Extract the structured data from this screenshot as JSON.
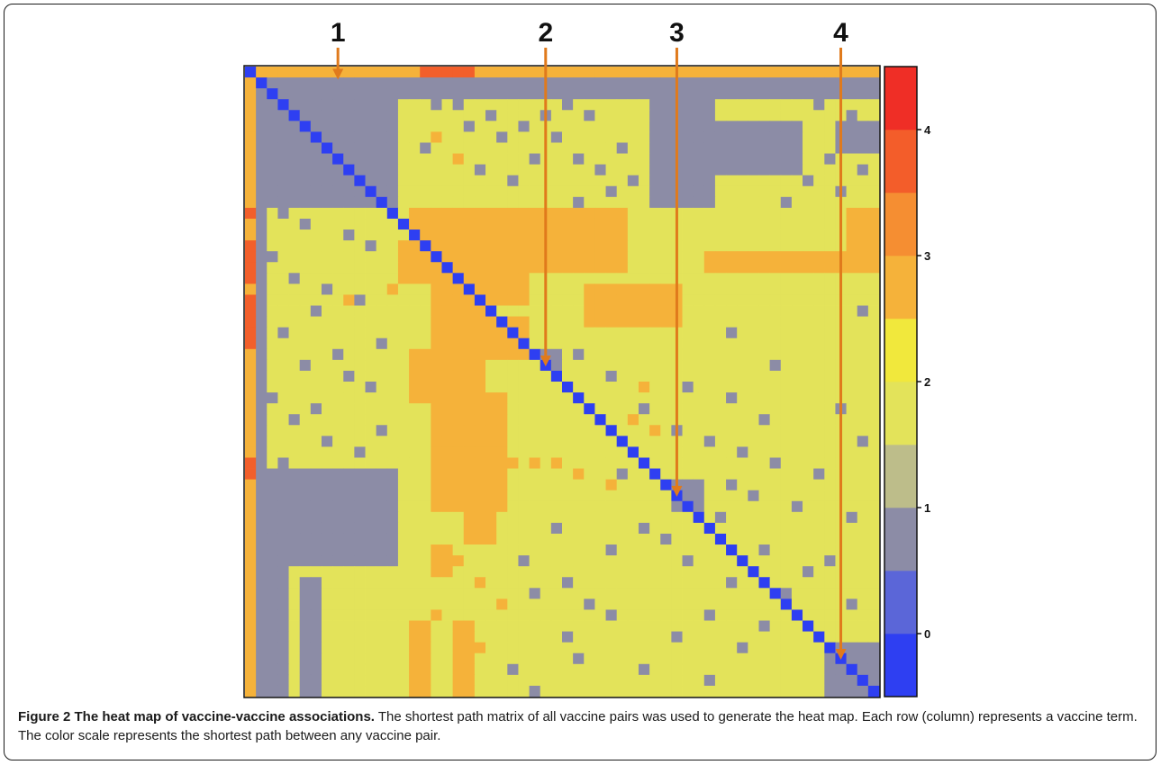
{
  "caption": {
    "figure_label": "Figure 2 The heat map of vaccine-vaccine associations.",
    "text": " The shortest path matrix of all vaccine pairs was used to generate the heat map. Each row (column) represents a vaccine term. The color scale represents the shortest path between any vaccine pair."
  },
  "chart_data": {
    "type": "heatmap",
    "n": 58,
    "value_range": [
      -0.5,
      4.5
    ],
    "colorbar": {
      "ticks": [
        "0",
        "1",
        "2",
        "3",
        "4"
      ],
      "tick_values": [
        0,
        1,
        2,
        3,
        4
      ],
      "bands": [
        {
          "from": -0.5,
          "to": 0.0,
          "color": "#2e3ff2"
        },
        {
          "from": 0.0,
          "to": 0.5,
          "color": "#5b66d8"
        },
        {
          "from": 0.5,
          "to": 1.0,
          "color": "#8c8ca6"
        },
        {
          "from": 1.0,
          "to": 1.5,
          "color": "#bdbd8a"
        },
        {
          "from": 1.5,
          "to": 2.0,
          "color": "#e3e35a"
        },
        {
          "from": 2.0,
          "to": 2.5,
          "color": "#f1e83c"
        },
        {
          "from": 2.5,
          "to": 3.0,
          "color": "#f5b23a"
        },
        {
          "from": 3.0,
          "to": 3.5,
          "color": "#f58e32"
        },
        {
          "from": 3.5,
          "to": 4.0,
          "color": "#f35d2a"
        },
        {
          "from": 4.0,
          "to": 4.5,
          "color": "#ef2e26"
        }
      ]
    },
    "cell_colors": {
      "0": "#2e3ff2",
      "1": "#8c8ca6",
      "2": "#e3e35a",
      "3": "#f5b23a",
      "4": "#f25f2b"
    },
    "annotations": [
      {
        "label": "1",
        "row": 1,
        "col": 8,
        "color": "#e07a1c"
      },
      {
        "label": "2",
        "row": 27,
        "col": 27,
        "color": "#e07a1c"
      },
      {
        "label": "3",
        "row": 39,
        "col": 39,
        "color": "#e07a1c"
      },
      {
        "label": "4",
        "row": 54,
        "col": 54,
        "color": "#e07a1c"
      }
    ],
    "blocks": [
      {
        "value": 3,
        "r0": 0,
        "r1": 0,
        "c0": 1,
        "c1": 57
      },
      {
        "value": 4,
        "r0": 0,
        "r1": 0,
        "c0": 16,
        "c1": 20
      },
      {
        "value": 4,
        "r0": 0,
        "r1": 0,
        "c0": 0,
        "c1": 0
      },
      {
        "value": 4,
        "r0": 1,
        "r1": 1,
        "c0": 12,
        "c1": 22
      },
      {
        "value": 4,
        "r0": 1,
        "r1": 1,
        "c0": 30,
        "c1": 31
      },
      {
        "value": 3,
        "r0": 1,
        "r1": 57,
        "c0": 0,
        "c1": 0
      },
      {
        "value": 4,
        "r0": 13,
        "r1": 13,
        "c0": 0,
        "c1": 0
      },
      {
        "value": 4,
        "r0": 16,
        "r1": 19,
        "c0": 0,
        "c1": 0
      },
      {
        "value": 4,
        "r0": 21,
        "r1": 25,
        "c0": 0,
        "c1": 0
      },
      {
        "value": 4,
        "r0": 36,
        "r1": 37,
        "c0": 0,
        "c1": 0
      },
      {
        "value": 1,
        "r0": 1,
        "r1": 12,
        "c0": 1,
        "c1": 13
      },
      {
        "value": 1,
        "r0": 1,
        "r1": 57,
        "c0": 1,
        "c1": 1
      },
      {
        "value": 1,
        "r0": 1,
        "r1": 2,
        "c0": 14,
        "c1": 57
      },
      {
        "value": 1,
        "r0": 3,
        "r1": 12,
        "c0": 37,
        "c1": 42
      },
      {
        "value": 1,
        "r0": 5,
        "r1": 9,
        "c0": 43,
        "c1": 50
      },
      {
        "value": 1,
        "r0": 5,
        "r1": 7,
        "c0": 54,
        "c1": 57
      },
      {
        "value": 1,
        "r0": 26,
        "r1": 27,
        "c0": 27,
        "c1": 28
      },
      {
        "value": 1,
        "r0": 38,
        "r1": 40,
        "c0": 39,
        "c1": 41
      },
      {
        "value": 1,
        "r0": 37,
        "r1": 45,
        "c0": 2,
        "c1": 13
      },
      {
        "value": 1,
        "r0": 40,
        "r1": 57,
        "c0": 1,
        "c1": 3
      },
      {
        "value": 1,
        "r0": 47,
        "r1": 57,
        "c0": 5,
        "c1": 6
      },
      {
        "value": 1,
        "r0": 53,
        "r1": 57,
        "c0": 53,
        "c1": 57
      },
      {
        "value": 3,
        "r0": 13,
        "r1": 18,
        "c0": 15,
        "c1": 34
      },
      {
        "value": 3,
        "r0": 13,
        "r1": 18,
        "c0": 55,
        "c1": 57
      },
      {
        "value": 3,
        "r0": 16,
        "r1": 19,
        "c0": 14,
        "c1": 17
      },
      {
        "value": 3,
        "r0": 17,
        "r1": 18,
        "c0": 42,
        "c1": 57
      },
      {
        "value": 3,
        "r0": 18,
        "r1": 26,
        "c0": 17,
        "c1": 21
      },
      {
        "value": 3,
        "r0": 19,
        "r1": 21,
        "c0": 22,
        "c1": 25
      },
      {
        "value": 3,
        "r0": 20,
        "r1": 23,
        "c0": 31,
        "c1": 39
      },
      {
        "value": 3,
        "r0": 23,
        "r1": 26,
        "c0": 21,
        "c1": 25
      },
      {
        "value": 3,
        "r0": 26,
        "r1": 30,
        "c0": 15,
        "c1": 21
      },
      {
        "value": 3,
        "r0": 30,
        "r1": 40,
        "c0": 17,
        "c1": 23
      },
      {
        "value": 3,
        "r0": 41,
        "r1": 43,
        "c0": 20,
        "c1": 22
      },
      {
        "value": 3,
        "r0": 44,
        "r1": 46,
        "c0": 17,
        "c1": 18
      },
      {
        "value": 3,
        "r0": 51,
        "r1": 57,
        "c0": 15,
        "c1": 16
      },
      {
        "value": 3,
        "r0": 51,
        "r1": 57,
        "c0": 19,
        "c1": 20
      }
    ],
    "scatter": [
      {
        "value": 1,
        "cells": [
          [
            3,
            17
          ],
          [
            3,
            19
          ],
          [
            4,
            22
          ],
          [
            5,
            20
          ],
          [
            5,
            25
          ],
          [
            6,
            23
          ],
          [
            7,
            16
          ],
          [
            8,
            26
          ],
          [
            9,
            21
          ],
          [
            10,
            24
          ],
          [
            3,
            29
          ],
          [
            4,
            27
          ],
          [
            4,
            31
          ],
          [
            6,
            28
          ],
          [
            7,
            34
          ],
          [
            8,
            30
          ],
          [
            9,
            32
          ],
          [
            10,
            35
          ],
          [
            11,
            33
          ],
          [
            12,
            30
          ],
          [
            3,
            52
          ],
          [
            4,
            55
          ],
          [
            8,
            53
          ],
          [
            9,
            56
          ],
          [
            10,
            51
          ],
          [
            11,
            54
          ],
          [
            12,
            49
          ],
          [
            13,
            3
          ],
          [
            14,
            5
          ],
          [
            15,
            9
          ],
          [
            16,
            11
          ],
          [
            17,
            2
          ],
          [
            19,
            4
          ],
          [
            20,
            7
          ],
          [
            21,
            10
          ],
          [
            22,
            6
          ],
          [
            24,
            3
          ],
          [
            25,
            12
          ],
          [
            26,
            8
          ],
          [
            27,
            5
          ],
          [
            28,
            9
          ],
          [
            29,
            11
          ],
          [
            30,
            2
          ],
          [
            31,
            6
          ],
          [
            32,
            4
          ],
          [
            33,
            12
          ],
          [
            34,
            7
          ],
          [
            35,
            10
          ],
          [
            36,
            3
          ],
          [
            26,
            30
          ],
          [
            28,
            33
          ],
          [
            29,
            40
          ],
          [
            30,
            44
          ],
          [
            31,
            36
          ],
          [
            32,
            47
          ],
          [
            33,
            39
          ],
          [
            34,
            42
          ],
          [
            35,
            45
          ],
          [
            36,
            48
          ],
          [
            37,
            34
          ],
          [
            38,
            44
          ],
          [
            39,
            46
          ],
          [
            40,
            50
          ],
          [
            41,
            43
          ],
          [
            42,
            36
          ],
          [
            43,
            38
          ],
          [
            44,
            47
          ],
          [
            45,
            40
          ],
          [
            46,
            51
          ],
          [
            47,
            44
          ],
          [
            48,
            49
          ],
          [
            49,
            55
          ],
          [
            50,
            42
          ],
          [
            51,
            47
          ],
          [
            52,
            39
          ],
          [
            53,
            45
          ],
          [
            54,
            30
          ],
          [
            55,
            36
          ],
          [
            56,
            42
          ],
          [
            57,
            26
          ],
          [
            22,
            56
          ],
          [
            24,
            44
          ],
          [
            27,
            48
          ],
          [
            31,
            54
          ],
          [
            34,
            56
          ],
          [
            37,
            52
          ],
          [
            41,
            55
          ],
          [
            45,
            53
          ],
          [
            48,
            26
          ],
          [
            50,
            33
          ],
          [
            52,
            29
          ],
          [
            55,
            24
          ],
          [
            45,
            25
          ],
          [
            47,
            29
          ],
          [
            49,
            31
          ],
          [
            42,
            28
          ],
          [
            44,
            33
          ]
        ]
      },
      {
        "value": 3,
        "cells": [
          [
            6,
            17
          ],
          [
            8,
            19
          ],
          [
            20,
            13
          ],
          [
            21,
            9
          ],
          [
            36,
            24
          ],
          [
            36,
            26
          ],
          [
            36,
            28
          ],
          [
            37,
            30
          ],
          [
            38,
            33
          ],
          [
            32,
            35
          ],
          [
            33,
            37
          ],
          [
            29,
            36
          ],
          [
            45,
            19
          ],
          [
            47,
            21
          ],
          [
            49,
            23
          ],
          [
            50,
            17
          ],
          [
            53,
            21
          ]
        ]
      }
    ]
  }
}
